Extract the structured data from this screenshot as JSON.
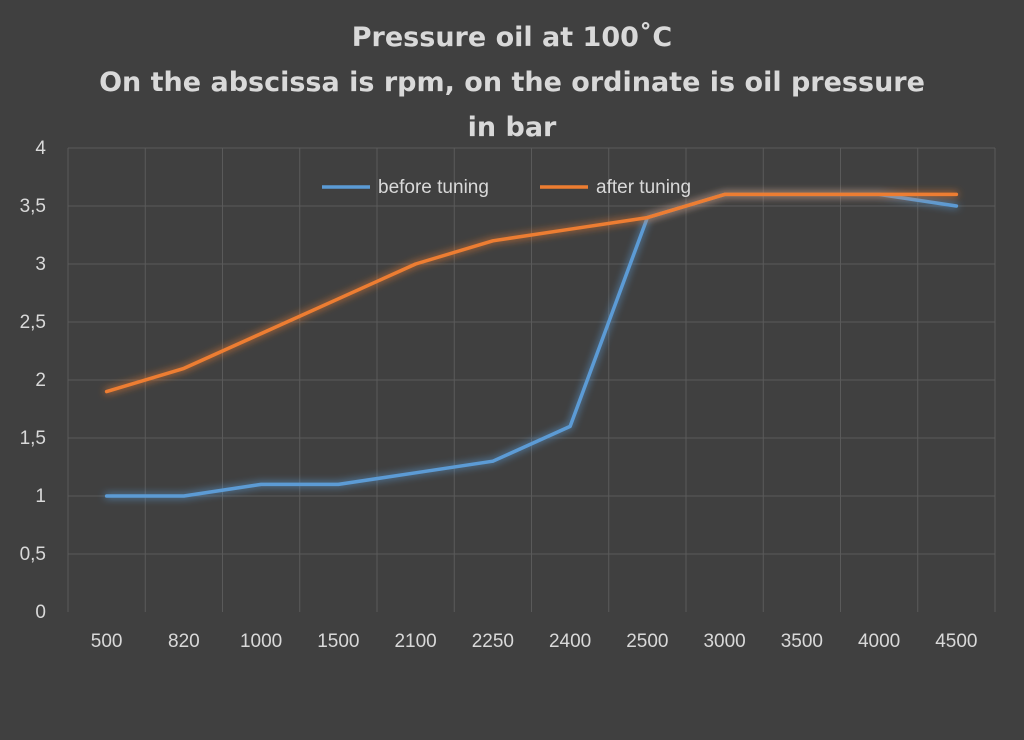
{
  "chart_data": {
    "type": "line",
    "title_lines": [
      "Pressure oil at 100˚C",
      "On the abscissa is rpm, on the ordinate is oil pressure",
      "in bar"
    ],
    "categories": [
      "500",
      "820",
      "1000",
      "1500",
      "2100",
      "2250",
      "2400",
      "2500",
      "3000",
      "3500",
      "4000",
      "4500"
    ],
    "y_ticks": [
      "0",
      "0,5",
      "1",
      "1,5",
      "2",
      "2,5",
      "3",
      "3,5",
      "4"
    ],
    "ylim": [
      0,
      4
    ],
    "grid": true,
    "legend_position": "top-center",
    "series": [
      {
        "name": "before tuning",
        "color": "#5b9bd5",
        "values": [
          1.0,
          1.0,
          1.1,
          1.1,
          1.2,
          1.3,
          1.6,
          3.4,
          3.6,
          3.6,
          3.6,
          3.5
        ]
      },
      {
        "name": "after tuning",
        "color": "#ed7d31",
        "values": [
          1.9,
          2.1,
          2.4,
          2.7,
          3.0,
          3.2,
          3.3,
          3.4,
          3.6,
          3.6,
          3.6,
          3.6
        ]
      }
    ]
  }
}
